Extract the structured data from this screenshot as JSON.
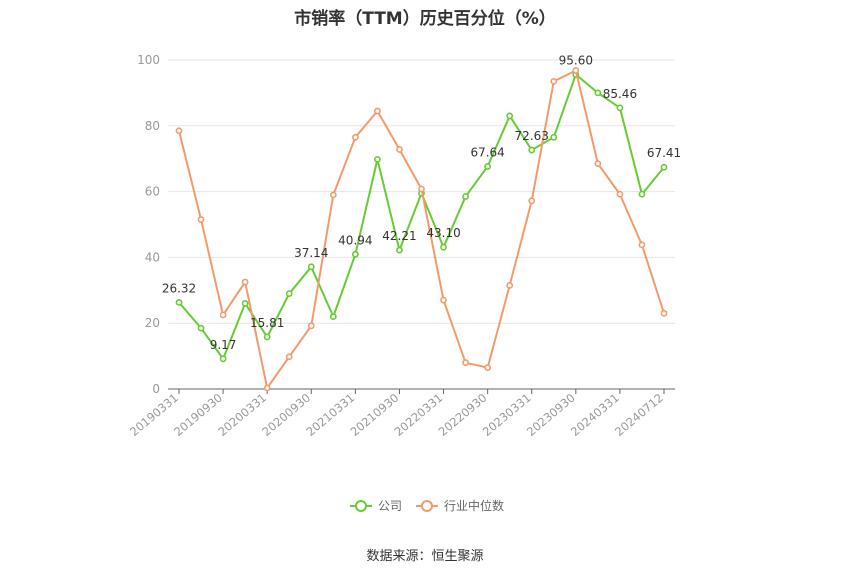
{
  "chart_data": {
    "type": "line",
    "title": "市销率（TTM）历史百分位（%）",
    "source": "数据来源：恒生聚源",
    "ylim": [
      0,
      100
    ],
    "yticks": [
      0,
      20,
      40,
      60,
      80,
      100
    ],
    "grid": true,
    "legend_position": "bottom",
    "x": [
      "20190331",
      "20190630",
      "20190930",
      "20191231",
      "20200331",
      "20200630",
      "20200930",
      "20201231",
      "20210331",
      "20210630",
      "20210930",
      "20211231",
      "20220331",
      "20220630",
      "20220930",
      "20221231",
      "20230331",
      "20230630",
      "20230930",
      "20231231",
      "20240331",
      "20240630",
      "20240712"
    ],
    "x_tick_labels": [
      "20190331",
      "20190930",
      "20200331",
      "20200930",
      "20210331",
      "20210930",
      "20220331",
      "20220930",
      "20230331",
      "20230930",
      "20240331",
      "20240712"
    ],
    "series": [
      {
        "name": "公司",
        "color": "#66cc33",
        "values": [
          26.32,
          18.5,
          9.17,
          26.0,
          15.81,
          29.0,
          37.14,
          22.0,
          40.94,
          69.8,
          42.21,
          59.5,
          43.1,
          58.5,
          67.64,
          83.0,
          72.63,
          76.5,
          95.6,
          90.0,
          85.46,
          59.2,
          67.41
        ],
        "labels": {
          "0": "26.32",
          "2": "9.17",
          "4": "15.81",
          "6": "37.14",
          "8": "40.94",
          "10": "42.21",
          "12": "43.10",
          "14": "67.64",
          "16": "72.63",
          "18": "95.60",
          "20": "85.46",
          "22": "67.41"
        }
      },
      {
        "name": "行业中位数",
        "color": "#f39a6b",
        "values": [
          78.5,
          51.5,
          22.5,
          32.5,
          0.3,
          9.8,
          19.2,
          59.0,
          76.5,
          84.5,
          72.8,
          60.8,
          27.0,
          8.0,
          6.5,
          31.5,
          57.2,
          93.5,
          96.8,
          68.5,
          59.2,
          43.8,
          23.0
        ],
        "labels": {}
      }
    ]
  }
}
